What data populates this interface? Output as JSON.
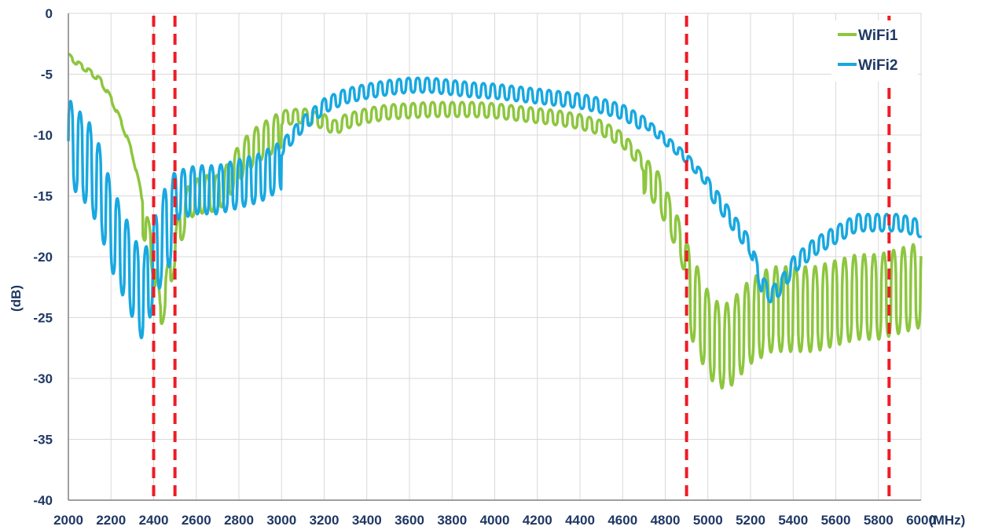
{
  "chart_data": {
    "type": "line",
    "title": "",
    "xlabel": "(MHz)",
    "ylabel": "(dB)",
    "xlim": [
      2000,
      6000
    ],
    "ylim": [
      -40,
      0
    ],
    "xticks": [
      2000,
      2200,
      2400,
      2600,
      2800,
      3000,
      3200,
      3400,
      3600,
      3800,
      4000,
      4200,
      4400,
      4600,
      4800,
      5000,
      5200,
      5400,
      5600,
      5800,
      6000
    ],
    "yticks": [
      0,
      -5,
      -10,
      -15,
      -20,
      -25,
      -30,
      -35,
      -40
    ],
    "grid": true,
    "legend_position": "top-right",
    "series": [
      {
        "name": "WiFi1",
        "color": "#8dc63f",
        "points": [
          [
            2000,
            -4.5
          ],
          [
            2050,
            -5.2
          ],
          [
            2100,
            -5.8
          ],
          [
            2150,
            -6.5
          ],
          [
            2200,
            -8.0
          ],
          [
            2250,
            -10.0
          ],
          [
            2300,
            -12.5
          ],
          [
            2350,
            -16.5
          ],
          [
            2380,
            -18.5
          ],
          [
            2400,
            -20.0
          ],
          [
            2430,
            -24.5
          ],
          [
            2470,
            -21.5
          ],
          [
            2520,
            -17.5
          ],
          [
            2570,
            -15.0
          ],
          [
            2650,
            -14.5
          ],
          [
            2700,
            -14.5
          ],
          [
            2750,
            -13.5
          ],
          [
            2800,
            -12.0
          ],
          [
            2850,
            -11.0
          ],
          [
            2900,
            -10.3
          ],
          [
            2950,
            -9.8
          ],
          [
            3000,
            -9.2
          ],
          [
            3100,
            -9.0
          ],
          [
            3200,
            -9.5
          ],
          [
            3250,
            -10.0
          ],
          [
            3300,
            -9.5
          ],
          [
            3400,
            -9.0
          ],
          [
            3500,
            -8.7
          ],
          [
            3600,
            -8.6
          ],
          [
            3700,
            -8.5
          ],
          [
            3800,
            -8.5
          ],
          [
            3900,
            -8.5
          ],
          [
            4000,
            -8.6
          ],
          [
            4100,
            -8.8
          ],
          [
            4200,
            -9.0
          ],
          [
            4300,
            -9.2
          ],
          [
            4400,
            -9.5
          ],
          [
            4500,
            -10.0
          ],
          [
            4600,
            -11.0
          ],
          [
            4700,
            -13.0
          ],
          [
            4760,
            -14.0
          ],
          [
            4800,
            -15.5
          ],
          [
            4850,
            -17.5
          ],
          [
            4900,
            -20.0
          ],
          [
            4950,
            -22.0
          ],
          [
            5000,
            -24.0
          ],
          [
            5050,
            -25.0
          ],
          [
            5100,
            -25.0
          ],
          [
            5150,
            -24.0
          ],
          [
            5200,
            -23.0
          ],
          [
            5250,
            -22.5
          ],
          [
            5300,
            -22.0
          ],
          [
            5350,
            -22.0
          ],
          [
            5400,
            -22.0
          ],
          [
            5450,
            -22.0
          ],
          [
            5500,
            -22.0
          ],
          [
            5600,
            -21.5
          ],
          [
            5700,
            -21.0
          ],
          [
            5800,
            -21.0
          ],
          [
            5900,
            -20.5
          ],
          [
            6000,
            -20.0
          ]
        ]
      },
      {
        "name": "WiFi2",
        "color": "#18a8e0",
        "points": [
          [
            2000,
            -8.0
          ],
          [
            2050,
            -9.0
          ],
          [
            2100,
            -10.0
          ],
          [
            2150,
            -12.0
          ],
          [
            2200,
            -15.0
          ],
          [
            2250,
            -17.0
          ],
          [
            2300,
            -19.0
          ],
          [
            2350,
            -21.0
          ],
          [
            2400,
            -18.0
          ],
          [
            2450,
            -15.5
          ],
          [
            2500,
            -14.0
          ],
          [
            2600,
            -13.5
          ],
          [
            2700,
            -13.5
          ],
          [
            2800,
            -13.0
          ],
          [
            2900,
            -12.5
          ],
          [
            3000,
            -11.5
          ],
          [
            3050,
            -10.5
          ],
          [
            3100,
            -9.5
          ],
          [
            3200,
            -8.0
          ],
          [
            3300,
            -7.2
          ],
          [
            3400,
            -6.8
          ],
          [
            3500,
            -6.5
          ],
          [
            3600,
            -6.3
          ],
          [
            3700,
            -6.3
          ],
          [
            3800,
            -6.5
          ],
          [
            3900,
            -6.7
          ],
          [
            4000,
            -6.8
          ],
          [
            4100,
            -7.0
          ],
          [
            4200,
            -7.2
          ],
          [
            4300,
            -7.4
          ],
          [
            4400,
            -7.6
          ],
          [
            4500,
            -8.0
          ],
          [
            4600,
            -8.5
          ],
          [
            4700,
            -9.5
          ],
          [
            4800,
            -11.0
          ],
          [
            4900,
            -12.5
          ],
          [
            5000,
            -14.5
          ],
          [
            5100,
            -17.0
          ],
          [
            5200,
            -19.5
          ],
          [
            5250,
            -22.5
          ],
          [
            5300,
            -23.5
          ],
          [
            5350,
            -22.5
          ],
          [
            5400,
            -21.0
          ],
          [
            5500,
            -19.5
          ],
          [
            5600,
            -18.5
          ],
          [
            5700,
            -17.5
          ],
          [
            5800,
            -17.5
          ],
          [
            5900,
            -17.5
          ],
          [
            6000,
            -18.0
          ]
        ]
      }
    ],
    "annotations": {
      "marker_lines_x": [
        2400,
        2500,
        4900,
        5850
      ],
      "marker_color": "#ee1c24"
    }
  },
  "legend": {
    "items": [
      "WiFi1",
      "WiFi2"
    ]
  }
}
